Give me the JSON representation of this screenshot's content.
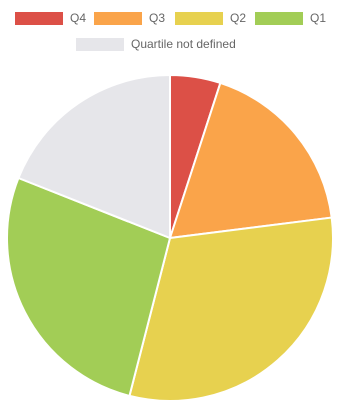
{
  "chart_data": {
    "type": "pie",
    "categories": [
      "Q4",
      "Q3",
      "Q2",
      "Q1",
      "Quartile not defined"
    ],
    "values": [
      5,
      18,
      31,
      27,
      19
    ],
    "colors": [
      "#dc5047",
      "#faa44a",
      "#e7d14f",
      "#a2cd56",
      "#e6e6ea"
    ],
    "legend_position": "top",
    "start_angle_deg": 0,
    "direction": "clockwise"
  }
}
